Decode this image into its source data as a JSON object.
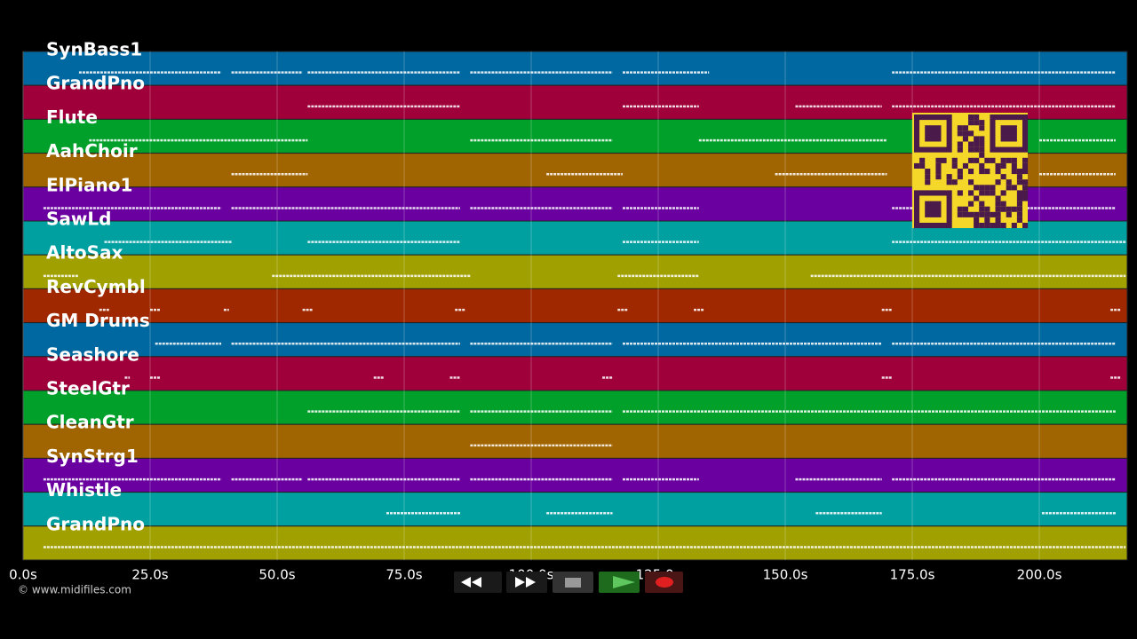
{
  "timeline": {
    "xlim": [
      0,
      217.3
    ],
    "ticks": [
      {
        "value": 0,
        "label": "0.0s"
      },
      {
        "value": 25,
        "label": "25.0s"
      },
      {
        "value": 50,
        "label": "50.0s"
      },
      {
        "value": 75,
        "label": "75.0s"
      },
      {
        "value": 100,
        "label": "100.0s"
      },
      {
        "value": 125,
        "label": "125.0s"
      },
      {
        "value": 150,
        "label": "150.0s"
      },
      {
        "value": 175,
        "label": "175.0s"
      },
      {
        "value": 200,
        "label": "200.0s"
      }
    ],
    "tracks": [
      {
        "name": "SynBass1",
        "color": "#0068a0",
        "notes": [
          [
            11,
            39
          ],
          [
            41,
            55
          ],
          [
            56,
            86
          ],
          [
            88,
            116
          ],
          [
            118,
            135
          ],
          [
            171,
            215
          ]
        ]
      },
      {
        "name": "GrandPno",
        "color": "#a0003a",
        "notes": [
          [
            56,
            86
          ],
          [
            118,
            133
          ],
          [
            152,
            169
          ],
          [
            171,
            215
          ]
        ]
      },
      {
        "name": "Flute",
        "color": "#00a02a",
        "notes": [
          [
            13,
            56
          ],
          [
            88,
            116
          ],
          [
            133,
            170
          ],
          [
            200,
            215
          ]
        ]
      },
      {
        "name": "AahChoir",
        "color": "#a06400",
        "notes": [
          [
            41,
            56
          ],
          [
            103,
            118
          ],
          [
            148,
            170
          ],
          [
            200,
            215
          ]
        ]
      },
      {
        "name": "ElPiano1",
        "color": "#6a00a0",
        "notes": [
          [
            4,
            39
          ],
          [
            41,
            86
          ],
          [
            88,
            116
          ],
          [
            118,
            133
          ],
          [
            171,
            215
          ]
        ]
      },
      {
        "name": "SawLd",
        "color": "#00a0a0",
        "notes": [
          [
            16,
            41
          ],
          [
            56,
            86
          ],
          [
            118,
            133
          ],
          [
            171,
            217
          ]
        ]
      },
      {
        "name": "AltoSax",
        "color": "#a0a000",
        "notes": [
          [
            4,
            11
          ],
          [
            49,
            88
          ],
          [
            117,
            133
          ],
          [
            155,
            217
          ]
        ]
      },
      {
        "name": "RevCymbl",
        "color": "#a02800",
        "notes": [
          [
            15,
            17
          ],
          [
            25,
            27
          ],
          [
            39.5,
            40.5
          ],
          [
            55,
            57
          ],
          [
            85,
            87
          ],
          [
            117,
            119
          ],
          [
            132,
            134
          ],
          [
            169,
            171
          ],
          [
            214,
            216
          ]
        ]
      },
      {
        "name": "GM Drums",
        "color": "#0068a0",
        "notes": [
          [
            26,
            39
          ],
          [
            41,
            86
          ],
          [
            88,
            116
          ],
          [
            118,
            169
          ],
          [
            171,
            215
          ]
        ]
      },
      {
        "name": "Seashore",
        "color": "#a0003a",
        "notes": [
          [
            20,
            21
          ],
          [
            25,
            27
          ],
          [
            69,
            71
          ],
          [
            84,
            86
          ],
          [
            114,
            116
          ],
          [
            169,
            171
          ],
          [
            214,
            216
          ]
        ]
      },
      {
        "name": "SteelGtr",
        "color": "#00a02a",
        "notes": [
          [
            56,
            86
          ],
          [
            88,
            116
          ],
          [
            118,
            215
          ]
        ]
      },
      {
        "name": "CleanGtr",
        "color": "#a06400",
        "notes": [
          [
            88,
            116
          ]
        ]
      },
      {
        "name": "SynStrg1",
        "color": "#6a00a0",
        "notes": [
          [
            4,
            39
          ],
          [
            41,
            55
          ],
          [
            56,
            86
          ],
          [
            88,
            116
          ],
          [
            118,
            133
          ],
          [
            152,
            169
          ],
          [
            171,
            215
          ]
        ]
      },
      {
        "name": "Whistle",
        "color": "#00a0a0",
        "notes": [
          [
            71.5,
            86
          ],
          [
            103,
            116
          ],
          [
            156,
            169
          ],
          [
            200.5,
            215
          ]
        ]
      },
      {
        "name": "GrandPno",
        "color": "#a0a000",
        "notes": [
          [
            4,
            217
          ]
        ]
      }
    ]
  },
  "footer": {
    "copyright": "© www.midifiles.com"
  }
}
